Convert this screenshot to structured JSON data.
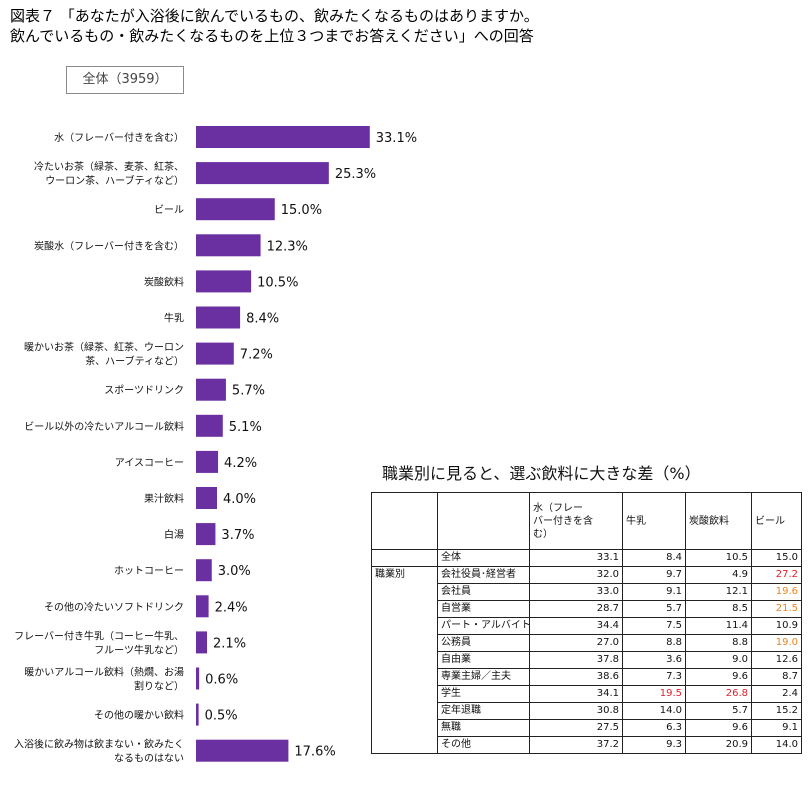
{
  "title": {
    "line1": "図表７ 「あなたが入浴後に飲んでいるもの、飲みたくなるものはありますか。",
    "line2": "飲んでいるもの・飲みたくなるものを上位３つまでお答えください」への回答"
  },
  "sample_label": "全体（3959）",
  "colors": {
    "bar": "#6a2fa0",
    "highlight_red": "#e0202a",
    "highlight_orange": "#e8861c"
  },
  "chart_data": {
    "type": "bar",
    "orientation": "horizontal",
    "unit": "%",
    "categories": [
      "水（フレーバー付きを含む）",
      "冷たいお茶（緑茶、麦茶、紅茶、\nウーロン茶、ハーブティなど）",
      "ビール",
      "炭酸水（フレーバー付きを含む）",
      "炭酸飲料",
      "牛乳",
      "暖かいお茶（緑茶、紅茶、ウーロン\n茶、ハーブティなど）",
      "スポーツドリンク",
      "ビール以外の冷たいアルコール飲料",
      "アイスコーヒー",
      "果汁飲料",
      "白湯",
      "ホットコーヒー",
      "その他の冷たいソフトドリンク",
      "フレーバー付き牛乳（コーヒー牛乳、\nフルーツ牛乳など）",
      "暖かいアルコール飲料（熱燗、お湯\n割りなど）",
      "その他の暖かい飲料",
      "入浴後に飲み物は飲まない・飲みたく\nなるものはない"
    ],
    "values": [
      33.1,
      25.3,
      15.0,
      12.3,
      10.5,
      8.4,
      7.2,
      5.7,
      5.1,
      4.2,
      4.0,
      3.7,
      3.0,
      2.4,
      2.1,
      0.6,
      0.5,
      17.6
    ],
    "value_labels": [
      "33.1%",
      "25.3%",
      "15.0%",
      "12.3%",
      "10.5%",
      "8.4%",
      "7.2%",
      "5.7%",
      "5.1%",
      "4.2%",
      "4.0%",
      "3.7%",
      "3.0%",
      "2.4%",
      "2.1%",
      "0.6%",
      "0.5%",
      "17.6%"
    ],
    "xlim": [
      0,
      40
    ]
  },
  "table": {
    "title": "職業別に見ると、選ぶ飲料に大きな差（%）",
    "columns": [
      "水（フレー\nバー付きを含\nむ）",
      "牛乳",
      "炭酸飲料",
      "ビール"
    ],
    "group_label": "職業別",
    "rows": [
      {
        "label": "全体",
        "group": false,
        "values": [
          "33.1",
          "8.4",
          "10.5",
          "15.0"
        ],
        "highlight": [
          "",
          "",
          "",
          ""
        ]
      },
      {
        "label": "会社役員･経営者",
        "group": true,
        "values": [
          "32.0",
          "9.7",
          "4.9",
          "27.2"
        ],
        "highlight": [
          "",
          "",
          "",
          "red"
        ]
      },
      {
        "label": "会社員",
        "group": true,
        "values": [
          "33.0",
          "9.1",
          "12.1",
          "19.6"
        ],
        "highlight": [
          "",
          "",
          "",
          "orange"
        ]
      },
      {
        "label": "自営業",
        "group": true,
        "values": [
          "28.7",
          "5.7",
          "8.5",
          "21.5"
        ],
        "highlight": [
          "",
          "",
          "",
          "orange"
        ]
      },
      {
        "label": "パート・アルバイト",
        "group": true,
        "values": [
          "34.4",
          "7.5",
          "11.4",
          "10.9"
        ],
        "highlight": [
          "",
          "",
          "",
          ""
        ]
      },
      {
        "label": "公務員",
        "group": true,
        "values": [
          "27.0",
          "8.8",
          "8.8",
          "19.0"
        ],
        "highlight": [
          "",
          "",
          "",
          "orange"
        ]
      },
      {
        "label": "自由業",
        "group": true,
        "values": [
          "37.8",
          "3.6",
          "9.0",
          "12.6"
        ],
        "highlight": [
          "",
          "",
          "",
          ""
        ]
      },
      {
        "label": "専業主婦／主夫",
        "group": true,
        "values": [
          "38.6",
          "7.3",
          "9.6",
          "8.7"
        ],
        "highlight": [
          "",
          "",
          "",
          ""
        ]
      },
      {
        "label": "学生",
        "group": true,
        "values": [
          "34.1",
          "19.5",
          "26.8",
          "2.4"
        ],
        "highlight": [
          "",
          "red",
          "red",
          ""
        ]
      },
      {
        "label": "定年退職",
        "group": true,
        "values": [
          "30.8",
          "14.0",
          "5.7",
          "15.2"
        ],
        "highlight": [
          "",
          "",
          "",
          ""
        ]
      },
      {
        "label": "無職",
        "group": true,
        "values": [
          "27.5",
          "6.3",
          "9.6",
          "9.1"
        ],
        "highlight": [
          "",
          "",
          "",
          ""
        ]
      },
      {
        "label": "その他",
        "group": true,
        "values": [
          "37.2",
          "9.3",
          "20.9",
          "14.0"
        ],
        "highlight": [
          "",
          "",
          "",
          ""
        ]
      }
    ]
  }
}
